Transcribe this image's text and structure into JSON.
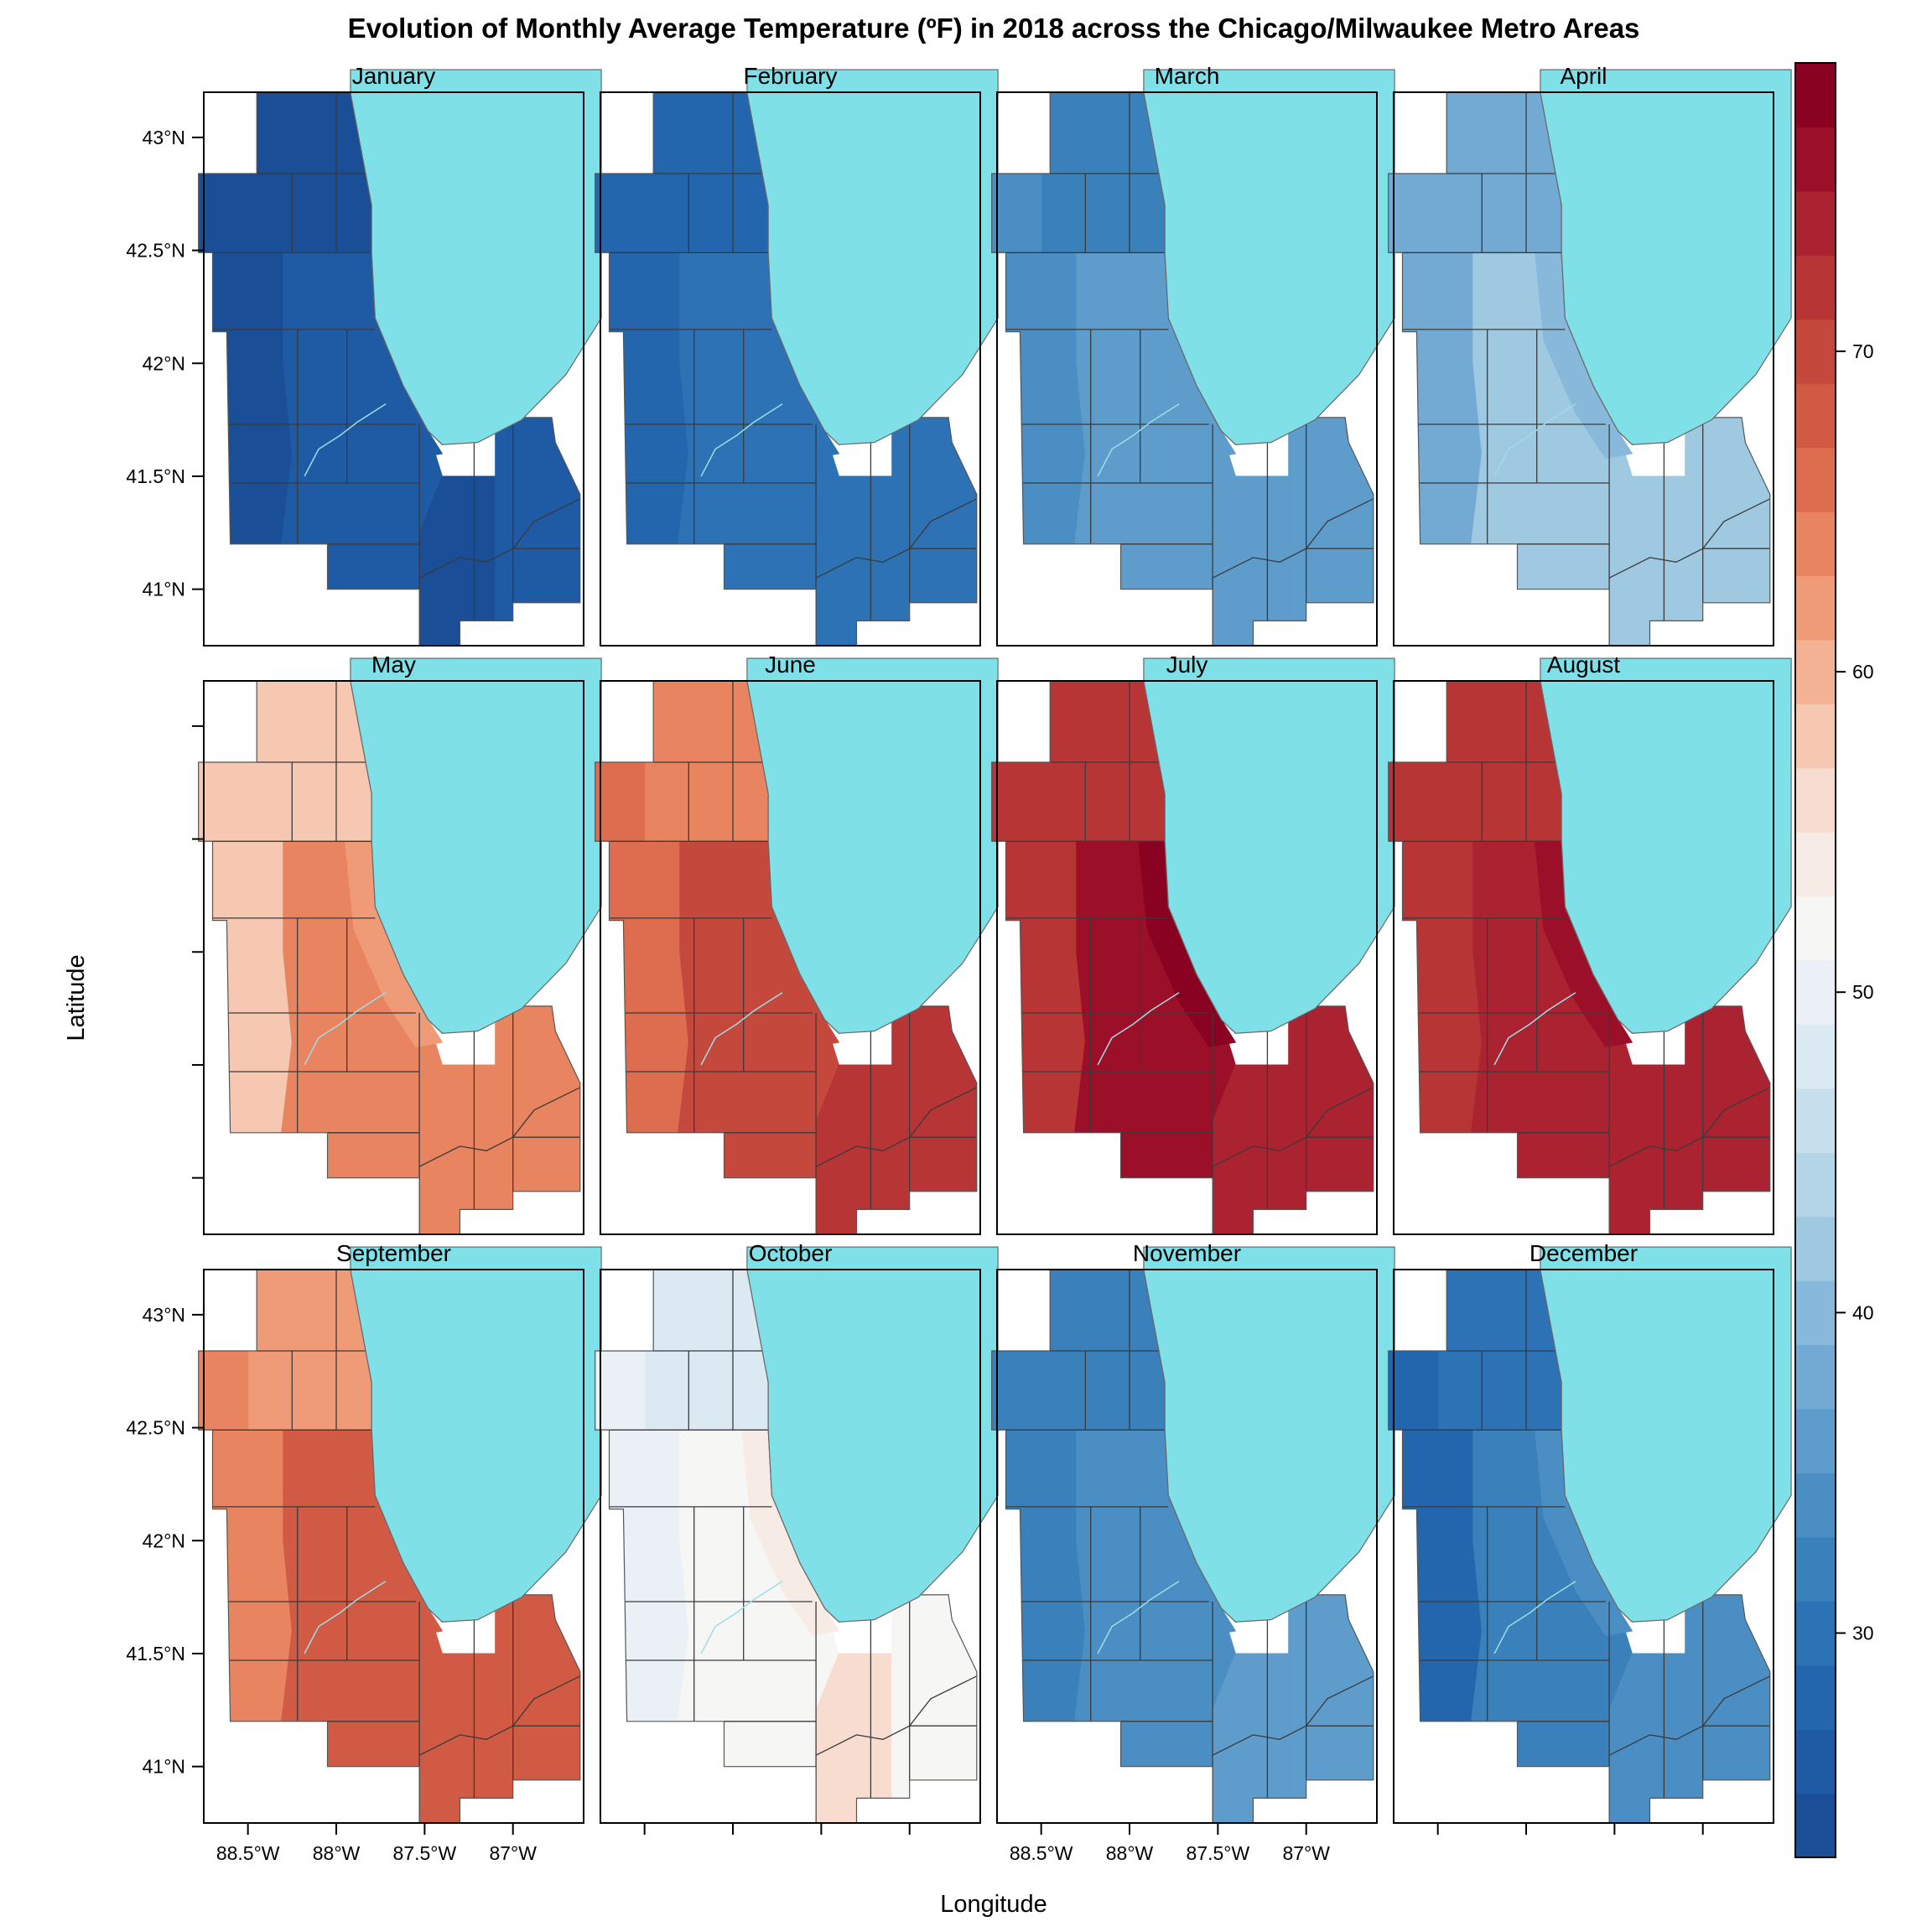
{
  "chart_data": {
    "type": "heatmap",
    "title": "Evolution of Monthly Average Temperature (ºF) in 2018 across the Chicago/Milwaukee Metro Areas",
    "xlabel": "Longitude",
    "ylabel": "Latitude",
    "layout": {
      "rows": 3,
      "cols": 4
    },
    "xlim": [
      -88.75,
      -86.6
    ],
    "ylim": [
      40.75,
      43.2
    ],
    "x_ticks": [
      -88.5,
      -88.0,
      -87.5,
      -87.0
    ],
    "x_tick_labels": [
      "88.5°W",
      "88°W",
      "87.5°W",
      "87°W"
    ],
    "y_ticks": [
      41.0,
      41.5,
      42.0,
      42.5,
      43.0
    ],
    "y_tick_labels": [
      "41°N",
      "41.5°N",
      "42°N",
      "42.5°N",
      "43°N"
    ],
    "lake_color": "#7fe0e8",
    "colorbar": {
      "min": 23,
      "max": 79,
      "step": 2,
      "ticks": [
        30,
        40,
        50,
        60,
        70
      ],
      "tick_labels": [
        "30",
        "40",
        "50",
        "60",
        "70"
      ],
      "palette": [
        "#1a4e96",
        "#1f5aa5",
        "#2466ad",
        "#2d72b4",
        "#3a80ba",
        "#4a8ec3",
        "#5d9ccb",
        "#72aad3",
        "#88b9da",
        "#9fc8e1",
        "#b4d4e7",
        "#c8e0ee",
        "#dbe9f3",
        "#eaf0f6",
        "#f6f6f4",
        "#f6ebe5",
        "#f7dccf",
        "#f6c8b1",
        "#f4b294",
        "#ef9b78",
        "#e8845f",
        "#de6d4f",
        "#d15a45",
        "#c5483c",
        "#b83536",
        "#ab2330",
        "#9c0f28",
        "#8a0222"
      ]
    },
    "panels": [
      {
        "month": "January",
        "values": {
          "north": 24.0,
          "west": 23.5,
          "center": 25.0,
          "lakeshore": 26.0,
          "south": 24.0,
          "east": 25.5
        }
      },
      {
        "month": "February",
        "values": {
          "north": 27.0,
          "west": 27.5,
          "center": 29.0,
          "lakeshore": 29.5,
          "south": 29.0,
          "east": 29.5
        }
      },
      {
        "month": "March",
        "values": {
          "north": 32.5,
          "west": 33.0,
          "center": 35.5,
          "lakeshore": 36.0,
          "south": 36.5,
          "east": 35.5
        }
      },
      {
        "month": "April",
        "values": {
          "north": 37.0,
          "west": 37.5,
          "center": 41.5,
          "lakeshore": 40.0,
          "south": 42.5,
          "east": 41.0
        }
      },
      {
        "month": "May",
        "values": {
          "north": 58.5,
          "west": 58.0,
          "center": 63.5,
          "lakeshore": 61.5,
          "south": 64.5,
          "east": 64.5
        }
      },
      {
        "month": "June",
        "values": {
          "north": 64.5,
          "west": 65.5,
          "center": 70.5,
          "lakeshore": 69.0,
          "south": 71.5,
          "east": 71.0
        }
      },
      {
        "month": "July",
        "values": {
          "north": 71.5,
          "west": 72.0,
          "center": 75.5,
          "lakeshore": 77.5,
          "south": 74.5,
          "east": 73.5
        }
      },
      {
        "month": "August",
        "values": {
          "north": 72.0,
          "west": 72.0,
          "center": 74.5,
          "lakeshore": 75.0,
          "south": 74.5,
          "east": 73.5
        }
      },
      {
        "month": "September",
        "values": {
          "north": 62.5,
          "west": 63.5,
          "center": 67.5,
          "lakeshore": 67.0,
          "south": 68.0,
          "east": 67.5
        }
      },
      {
        "month": "October",
        "values": {
          "north": 48.5,
          "west": 50.5,
          "center": 52.5,
          "lakeshore": 54.5,
          "south": 55.5,
          "east": 52.5
        }
      },
      {
        "month": "November",
        "values": {
          "north": 31.5,
          "west": 31.0,
          "center": 33.5,
          "lakeshore": 34.0,
          "south": 35.5,
          "east": 35.0
        }
      },
      {
        "month": "December",
        "values": {
          "north": 29.5,
          "west": 28.5,
          "center": 32.5,
          "lakeshore": 33.0,
          "south": 33.5,
          "east": 33.0
        }
      }
    ]
  }
}
